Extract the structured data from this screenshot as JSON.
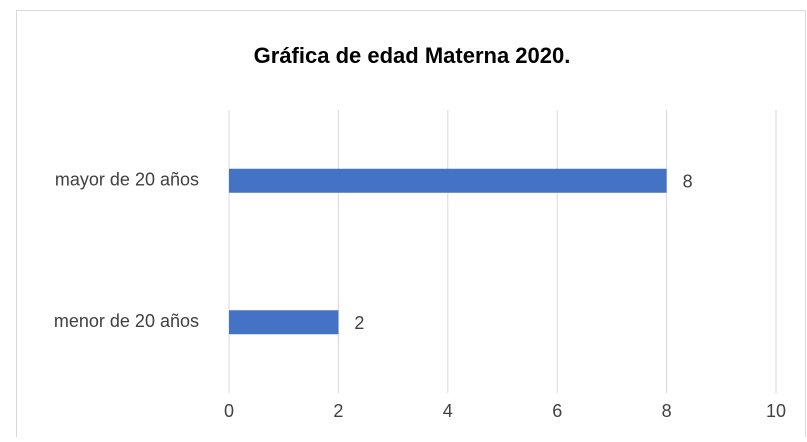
{
  "chart_data": {
    "type": "bar",
    "orientation": "horizontal",
    "title": "Gráfica de edad Materna 2020.",
    "categories": [
      "menor de 20 años",
      "mayor de 20 años"
    ],
    "values": [
      2,
      8
    ],
    "color": "#4472c4",
    "xlim": [
      0,
      10
    ],
    "xticks": [
      0,
      2,
      4,
      6,
      8,
      10
    ],
    "grid": true
  }
}
